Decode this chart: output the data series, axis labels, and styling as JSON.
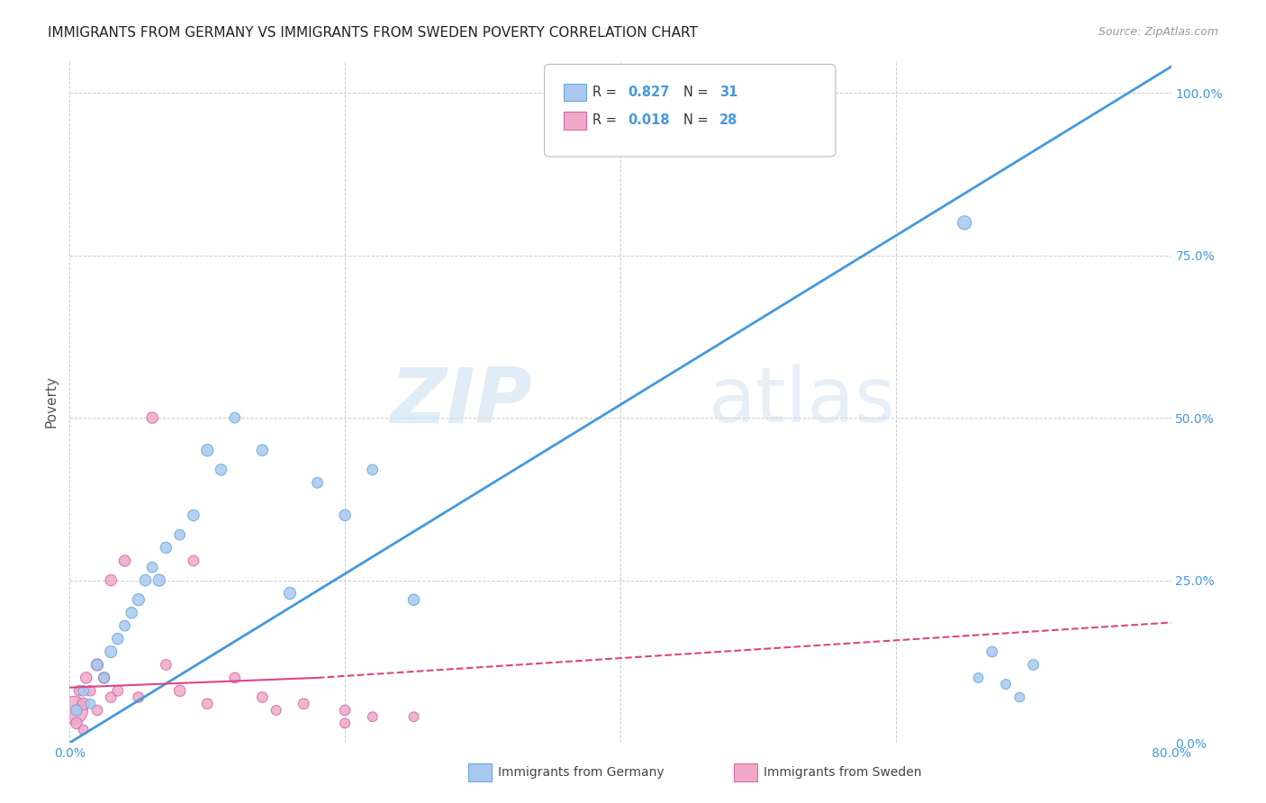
{
  "title": "IMMIGRANTS FROM GERMANY VS IMMIGRANTS FROM SWEDEN POVERTY CORRELATION CHART",
  "source": "Source: ZipAtlas.com",
  "ylabel": "Poverty",
  "xlim": [
    0.0,
    0.8
  ],
  "ylim": [
    0.0,
    1.05
  ],
  "watermark_zip": "ZIP",
  "watermark_atlas": "atlas",
  "germany_color": "#a8c8f0",
  "germany_edge": "#6aaad4",
  "sweden_color": "#f0a8c8",
  "sweden_edge": "#d46aaa",
  "germany_line_color": "#4499dd",
  "sweden_line_color": "#dd4488",
  "germany_r": "0.827",
  "germany_n": "31",
  "sweden_r": "0.018",
  "sweden_n": "28",
  "accent_color": "#4499dd",
  "germany_scatter_x": [
    0.005,
    0.01,
    0.015,
    0.02,
    0.025,
    0.03,
    0.035,
    0.04,
    0.045,
    0.05,
    0.055,
    0.06,
    0.065,
    0.07,
    0.08,
    0.09,
    0.1,
    0.11,
    0.12,
    0.14,
    0.16,
    0.18,
    0.2,
    0.22,
    0.25,
    0.65,
    0.66,
    0.67,
    0.68,
    0.69,
    0.7
  ],
  "germany_scatter_y": [
    0.05,
    0.08,
    0.06,
    0.12,
    0.1,
    0.14,
    0.16,
    0.18,
    0.2,
    0.22,
    0.25,
    0.27,
    0.25,
    0.3,
    0.32,
    0.35,
    0.45,
    0.42,
    0.5,
    0.45,
    0.23,
    0.4,
    0.35,
    0.42,
    0.22,
    0.8,
    0.1,
    0.14,
    0.09,
    0.07,
    0.12
  ],
  "germany_scatter_size": [
    80,
    70,
    60,
    80,
    70,
    90,
    80,
    70,
    80,
    90,
    80,
    70,
    90,
    80,
    70,
    80,
    90,
    80,
    70,
    80,
    90,
    70,
    80,
    70,
    80,
    120,
    60,
    70,
    60,
    60,
    70
  ],
  "sweden_scatter_x": [
    0.003,
    0.005,
    0.007,
    0.01,
    0.01,
    0.012,
    0.015,
    0.02,
    0.02,
    0.025,
    0.03,
    0.03,
    0.035,
    0.04,
    0.05,
    0.06,
    0.07,
    0.08,
    0.09,
    0.1,
    0.12,
    0.14,
    0.15,
    0.17,
    0.2,
    0.2,
    0.22,
    0.25
  ],
  "sweden_scatter_y": [
    0.05,
    0.03,
    0.08,
    0.06,
    0.02,
    0.1,
    0.08,
    0.12,
    0.05,
    0.1,
    0.07,
    0.25,
    0.08,
    0.28,
    0.07,
    0.5,
    0.12,
    0.08,
    0.28,
    0.06,
    0.1,
    0.07,
    0.05,
    0.06,
    0.05,
    0.03,
    0.04,
    0.04
  ],
  "sweden_scatter_size": [
    500,
    80,
    70,
    90,
    60,
    80,
    70,
    90,
    70,
    80,
    70,
    80,
    70,
    80,
    70,
    80,
    70,
    80,
    70,
    70,
    70,
    70,
    60,
    70,
    70,
    60,
    60,
    60
  ],
  "germany_trend_x0": 0.0,
  "germany_trend_y0": 0.0,
  "germany_trend_x1": 0.8,
  "germany_trend_y1": 1.04,
  "sweden_trend_solid_x0": 0.0,
  "sweden_trend_solid_y0": 0.085,
  "sweden_trend_solid_x1": 0.18,
  "sweden_trend_solid_y1": 0.1,
  "sweden_trend_dash_x0": 0.18,
  "sweden_trend_dash_y0": 0.1,
  "sweden_trend_dash_x1": 0.8,
  "sweden_trend_dash_y1": 0.185
}
